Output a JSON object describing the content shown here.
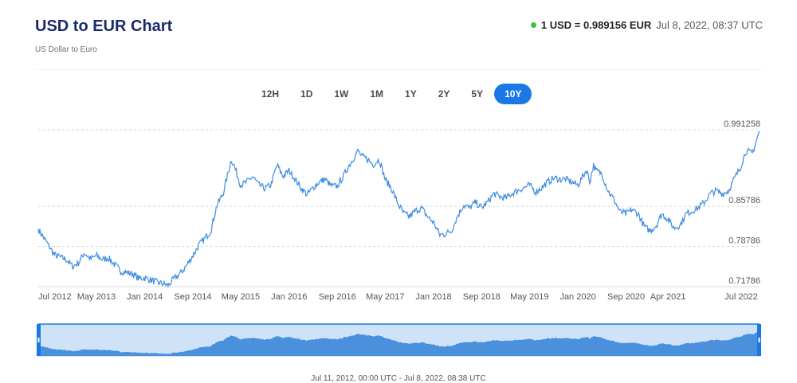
{
  "header": {
    "title": "USD to EUR Chart",
    "subtitle": "US Dollar to Euro",
    "rate": "1 USD = 0.989156 EUR",
    "timestamp": "Jul 8, 2022, 08:37 UTC",
    "live_dot_color": "#3cc43c"
  },
  "tabs": [
    {
      "label": "12H",
      "active": false
    },
    {
      "label": "1D",
      "active": false
    },
    {
      "label": "1W",
      "active": false
    },
    {
      "label": "1M",
      "active": false
    },
    {
      "label": "1Y",
      "active": false
    },
    {
      "label": "2Y",
      "active": false
    },
    {
      "label": "5Y",
      "active": false
    },
    {
      "label": "10Y",
      "active": true
    }
  ],
  "navigator": {
    "range_label": "Jul 11, 2012, 00:00 UTC - Jul 8, 2022, 08:38 UTC"
  },
  "chart_data": {
    "type": "line",
    "title": "USD to EUR Chart",
    "series_name": "",
    "line_color": "#3d8de0",
    "accent_color": "#1a78e6",
    "x_start": "2012-07-11",
    "x_end": "2022-07-08",
    "ylim": [
      0.71786,
      0.991258
    ],
    "y_ticks": [
      0.71786,
      0.78786,
      0.85786,
      0.991258
    ],
    "y_tick_labels": [
      "0.71786",
      "0.78786",
      "0.85786",
      "0.991258"
    ],
    "x_ticks": [
      {
        "label": "Jul 2012",
        "date": "2012-07-01"
      },
      {
        "label": "May 2013",
        "date": "2013-05-01"
      },
      {
        "label": "Jan 2014",
        "date": "2014-01-01"
      },
      {
        "label": "Sep 2014",
        "date": "2014-09-01"
      },
      {
        "label": "May 2015",
        "date": "2015-05-01"
      },
      {
        "label": "Jan 2016",
        "date": "2016-01-01"
      },
      {
        "label": "Sep 2016",
        "date": "2016-09-01"
      },
      {
        "label": "May 2017",
        "date": "2017-05-01"
      },
      {
        "label": "Jan 2018",
        "date": "2018-01-01"
      },
      {
        "label": "Sep 2018",
        "date": "2018-09-01"
      },
      {
        "label": "May 2019",
        "date": "2019-05-01"
      },
      {
        "label": "Jan 2020",
        "date": "2020-01-01"
      },
      {
        "label": "Sep 2020",
        "date": "2020-09-01"
      },
      {
        "label": "Apr 2021",
        "date": "2021-04-01"
      },
      {
        "label": "Jul 2022",
        "date": "2022-07-01"
      }
    ],
    "grid_horizontal": true,
    "points": [
      [
        "2012-07-11",
        0.818
      ],
      [
        "2012-09-01",
        0.79
      ],
      [
        "2012-10-01",
        0.773
      ],
      [
        "2012-12-01",
        0.765
      ],
      [
        "2013-01-01",
        0.753
      ],
      [
        "2013-02-01",
        0.76
      ],
      [
        "2013-03-01",
        0.777
      ],
      [
        "2013-04-01",
        0.766
      ],
      [
        "2013-05-01",
        0.772
      ],
      [
        "2013-06-01",
        0.765
      ],
      [
        "2013-07-01",
        0.768
      ],
      [
        "2013-09-01",
        0.745
      ],
      [
        "2013-11-01",
        0.74
      ],
      [
        "2013-12-01",
        0.732
      ],
      [
        "2014-01-01",
        0.733
      ],
      [
        "2014-03-01",
        0.726
      ],
      [
        "2014-05-01",
        0.72
      ],
      [
        "2014-06-01",
        0.733
      ],
      [
        "2014-07-01",
        0.741
      ],
      [
        "2014-08-01",
        0.755
      ],
      [
        "2014-09-01",
        0.772
      ],
      [
        "2014-10-01",
        0.79
      ],
      [
        "2014-11-01",
        0.802
      ],
      [
        "2014-12-01",
        0.815
      ],
      [
        "2015-01-01",
        0.86
      ],
      [
        "2015-02-01",
        0.88
      ],
      [
        "2015-03-15",
        0.94
      ],
      [
        "2015-04-01",
        0.925
      ],
      [
        "2015-05-01",
        0.895
      ],
      [
        "2015-06-01",
        0.9
      ],
      [
        "2015-07-01",
        0.91
      ],
      [
        "2015-08-01",
        0.895
      ],
      [
        "2015-09-01",
        0.889
      ],
      [
        "2015-10-01",
        0.895
      ],
      [
        "2015-11-01",
        0.93
      ],
      [
        "2015-12-01",
        0.91
      ],
      [
        "2016-01-01",
        0.92
      ],
      [
        "2016-02-01",
        0.905
      ],
      [
        "2016-03-01",
        0.89
      ],
      [
        "2016-04-01",
        0.878
      ],
      [
        "2016-05-01",
        0.89
      ],
      [
        "2016-06-01",
        0.9
      ],
      [
        "2016-07-01",
        0.905
      ],
      [
        "2016-08-01",
        0.893
      ],
      [
        "2016-09-01",
        0.893
      ],
      [
        "2016-10-01",
        0.91
      ],
      [
        "2016-11-01",
        0.93
      ],
      [
        "2016-12-15",
        0.955
      ],
      [
        "2017-01-01",
        0.945
      ],
      [
        "2017-02-01",
        0.94
      ],
      [
        "2017-03-01",
        0.93
      ],
      [
        "2017-04-01",
        0.94
      ],
      [
        "2017-05-01",
        0.905
      ],
      [
        "2017-06-01",
        0.89
      ],
      [
        "2017-07-01",
        0.865
      ],
      [
        "2017-08-01",
        0.846
      ],
      [
        "2017-09-01",
        0.84
      ],
      [
        "2017-10-01",
        0.85
      ],
      [
        "2017-11-01",
        0.855
      ],
      [
        "2017-12-01",
        0.84
      ],
      [
        "2018-01-01",
        0.83
      ],
      [
        "2018-02-01",
        0.808
      ],
      [
        "2018-03-01",
        0.81
      ],
      [
        "2018-04-01",
        0.815
      ],
      [
        "2018-05-01",
        0.84
      ],
      [
        "2018-06-01",
        0.86
      ],
      [
        "2018-07-01",
        0.855
      ],
      [
        "2018-08-01",
        0.865
      ],
      [
        "2018-09-01",
        0.855
      ],
      [
        "2018-10-01",
        0.865
      ],
      [
        "2018-11-01",
        0.88
      ],
      [
        "2018-12-01",
        0.875
      ],
      [
        "2019-01-01",
        0.872
      ],
      [
        "2019-02-01",
        0.88
      ],
      [
        "2019-03-01",
        0.885
      ],
      [
        "2019-04-01",
        0.89
      ],
      [
        "2019-05-01",
        0.895
      ],
      [
        "2019-06-01",
        0.883
      ],
      [
        "2019-07-01",
        0.89
      ],
      [
        "2019-08-01",
        0.9
      ],
      [
        "2019-09-01",
        0.907
      ],
      [
        "2019-10-01",
        0.905
      ],
      [
        "2019-11-01",
        0.905
      ],
      [
        "2019-12-01",
        0.9
      ],
      [
        "2020-01-01",
        0.895
      ],
      [
        "2020-02-15",
        0.922
      ],
      [
        "2020-03-01",
        0.9
      ],
      [
        "2020-03-20",
        0.93
      ],
      [
        "2020-04-01",
        0.92
      ],
      [
        "2020-05-01",
        0.915
      ],
      [
        "2020-06-01",
        0.885
      ],
      [
        "2020-07-01",
        0.87
      ],
      [
        "2020-08-01",
        0.848
      ],
      [
        "2020-09-01",
        0.845
      ],
      [
        "2020-10-01",
        0.852
      ],
      [
        "2020-11-01",
        0.845
      ],
      [
        "2020-12-01",
        0.823
      ],
      [
        "2021-01-01",
        0.815
      ],
      [
        "2021-02-01",
        0.825
      ],
      [
        "2021-03-01",
        0.845
      ],
      [
        "2021-04-01",
        0.835
      ],
      [
        "2021-05-01",
        0.82
      ],
      [
        "2021-06-01",
        0.825
      ],
      [
        "2021-07-01",
        0.845
      ],
      [
        "2021-08-01",
        0.85
      ],
      [
        "2021-09-01",
        0.855
      ],
      [
        "2021-10-01",
        0.865
      ],
      [
        "2021-11-01",
        0.88
      ],
      [
        "2021-12-01",
        0.885
      ],
      [
        "2022-01-01",
        0.88
      ],
      [
        "2022-02-01",
        0.885
      ],
      [
        "2022-03-01",
        0.905
      ],
      [
        "2022-04-01",
        0.925
      ],
      [
        "2022-05-01",
        0.955
      ],
      [
        "2022-06-01",
        0.95
      ],
      [
        "2022-07-08",
        0.989156
      ]
    ]
  }
}
